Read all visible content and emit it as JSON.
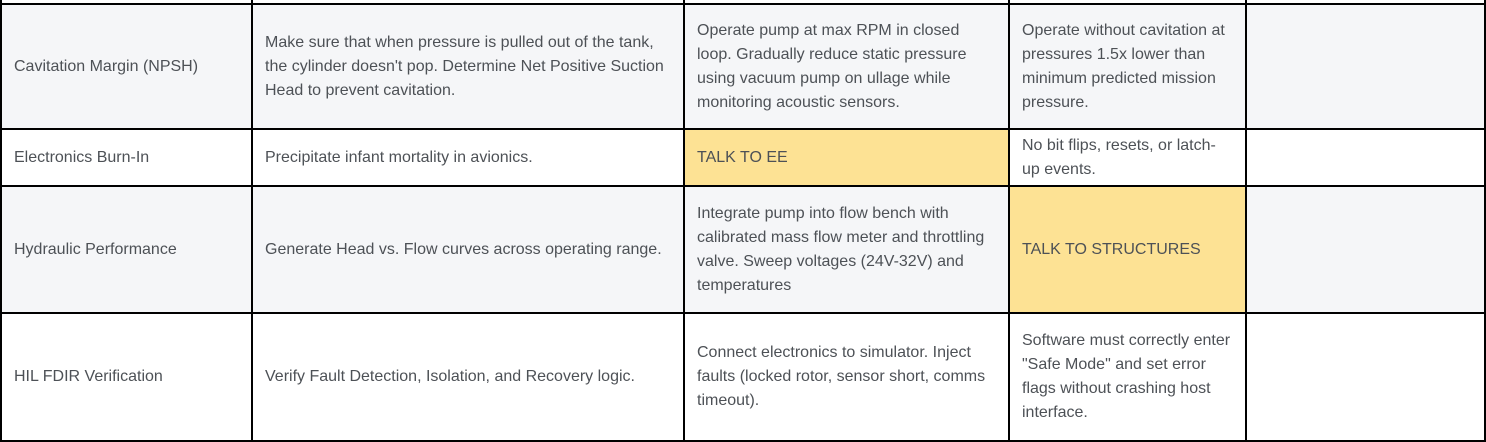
{
  "colors": {
    "highlight_yellow": "#fde294",
    "row_stripe_gray": "#f5f6f8",
    "row_white": "#ffffff",
    "border_black": "#000000",
    "text_gray": "#4d5156"
  },
  "table": {
    "rows": [
      {
        "cells": [
          {
            "text": "Cavitation Margin (NPSH)",
            "highlight": false
          },
          {
            "text": "Make sure that when pressure is pulled out of the tank, the cylinder doesn't pop. Determine Net Positive Suction Head to prevent cavitation.",
            "highlight": false
          },
          {
            "text": "Operate pump at max RPM in closed loop. Gradually reduce static pressure using vacuum pump on ullage while monitoring acoustic sensors.",
            "highlight": false
          },
          {
            "text": "Operate without cavitation at pressures 1.5x lower than minimum predicted mission pressure.",
            "highlight": false
          },
          {
            "text": "",
            "highlight": false
          }
        ]
      },
      {
        "cells": [
          {
            "text": "Electronics Burn-In",
            "highlight": false
          },
          {
            "text": "Precipitate infant mortality in avionics.",
            "highlight": false
          },
          {
            "text": "TALK TO EE",
            "highlight": true
          },
          {
            "text": "No bit flips, resets, or latch-up events.",
            "highlight": false
          },
          {
            "text": "",
            "highlight": false
          }
        ]
      },
      {
        "cells": [
          {
            "text": "Hydraulic Performance",
            "highlight": false
          },
          {
            "text": "Generate Head vs. Flow curves across operating range.",
            "highlight": false
          },
          {
            "text": "Integrate pump into flow bench with calibrated mass flow meter and throttling valve. Sweep voltages (24V-32V) and temperatures",
            "highlight": false
          },
          {
            "text": "TALK TO STRUCTURES",
            "highlight": true
          },
          {
            "text": "",
            "highlight": false
          }
        ]
      },
      {
        "cells": [
          {
            "text": "HIL FDIR Verification",
            "highlight": false
          },
          {
            "text": "Verify Fault Detection, Isolation, and Recovery logic.",
            "highlight": false
          },
          {
            "text": "Connect electronics to simulator. Inject faults (locked rotor, sensor short, comms timeout).",
            "highlight": false
          },
          {
            "text": "Software must correctly enter \"Safe Mode\" and set error flags without crashing host interface.",
            "highlight": false
          },
          {
            "text": "",
            "highlight": false
          }
        ]
      }
    ]
  }
}
